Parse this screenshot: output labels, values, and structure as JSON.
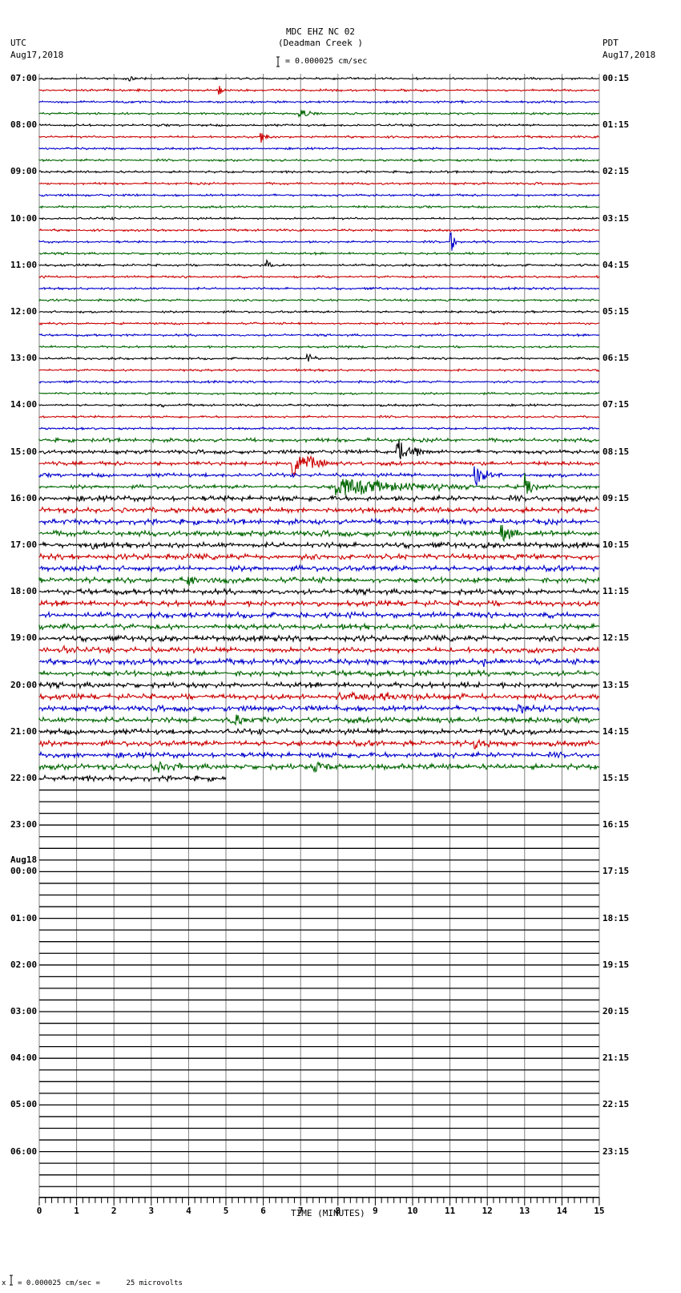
{
  "header": {
    "station": "MDC EHZ NC 02",
    "location": "(Deadman Creek )",
    "scale": "= 0.000025 cm/sec",
    "left_tz": "UTC",
    "left_date": "Aug17,2018",
    "right_tz": "PDT",
    "right_date": "Aug17,2018"
  },
  "footer": {
    "scale_note": "= 0.000025 cm/sec =      25 microvolts",
    "scale_prefix": "x"
  },
  "colors": {
    "black": "#000000",
    "red": "#cc0000",
    "blue": "#0000cc",
    "green": "#006600",
    "grid": "#808080"
  },
  "chart_data": {
    "type": "line",
    "title": "MDC EHZ NC 02 (Deadman Creek )",
    "xlabel": "TIME (MINUTES)",
    "ylabel": "",
    "xlim": [
      0,
      15
    ],
    "x_ticks": [
      0,
      1,
      2,
      3,
      4,
      5,
      6,
      7,
      8,
      9,
      10,
      11,
      12,
      13,
      14,
      15
    ],
    "rows_total": 96,
    "rows_with_data": 61,
    "last_row_end_minute": 5.0,
    "row_minutes": 15,
    "color_cycle": [
      "black",
      "red",
      "blue",
      "green"
    ],
    "left_labels": [
      {
        "row": 0,
        "text": "07:00"
      },
      {
        "row": 4,
        "text": "08:00"
      },
      {
        "row": 8,
        "text": "09:00"
      },
      {
        "row": 12,
        "text": "10:00"
      },
      {
        "row": 16,
        "text": "11:00"
      },
      {
        "row": 20,
        "text": "12:00"
      },
      {
        "row": 24,
        "text": "13:00"
      },
      {
        "row": 28,
        "text": "14:00"
      },
      {
        "row": 32,
        "text": "15:00"
      },
      {
        "row": 36,
        "text": "16:00"
      },
      {
        "row": 40,
        "text": "17:00"
      },
      {
        "row": 44,
        "text": "18:00"
      },
      {
        "row": 48,
        "text": "19:00"
      },
      {
        "row": 52,
        "text": "20:00"
      },
      {
        "row": 56,
        "text": "21:00"
      },
      {
        "row": 60,
        "text": "22:00"
      },
      {
        "row": 64,
        "text": "23:00"
      },
      {
        "row": 68,
        "text": "00:00",
        "date": "Aug18"
      },
      {
        "row": 72,
        "text": "01:00"
      },
      {
        "row": 76,
        "text": "02:00"
      },
      {
        "row": 80,
        "text": "03:00"
      },
      {
        "row": 84,
        "text": "04:00"
      },
      {
        "row": 88,
        "text": "05:00"
      },
      {
        "row": 92,
        "text": "06:00"
      }
    ],
    "right_labels": [
      {
        "row": 0,
        "text": "00:15"
      },
      {
        "row": 4,
        "text": "01:15"
      },
      {
        "row": 8,
        "text": "02:15"
      },
      {
        "row": 12,
        "text": "03:15"
      },
      {
        "row": 16,
        "text": "04:15"
      },
      {
        "row": 20,
        "text": "05:15"
      },
      {
        "row": 24,
        "text": "06:15"
      },
      {
        "row": 28,
        "text": "07:15"
      },
      {
        "row": 32,
        "text": "08:15"
      },
      {
        "row": 36,
        "text": "09:15"
      },
      {
        "row": 40,
        "text": "10:15"
      },
      {
        "row": 44,
        "text": "11:15"
      },
      {
        "row": 48,
        "text": "12:15"
      },
      {
        "row": 52,
        "text": "13:15"
      },
      {
        "row": 56,
        "text": "14:15"
      },
      {
        "row": 60,
        "text": "15:15"
      },
      {
        "row": 64,
        "text": "16:15"
      },
      {
        "row": 68,
        "text": "17:15"
      },
      {
        "row": 72,
        "text": "18:15"
      },
      {
        "row": 76,
        "text": "19:15"
      },
      {
        "row": 80,
        "text": "20:15"
      },
      {
        "row": 84,
        "text": "21:15"
      },
      {
        "row": 88,
        "text": "22:15"
      },
      {
        "row": 92,
        "text": "23:15"
      }
    ],
    "noise_by_row_range": [
      {
        "from": 0,
        "to": 30,
        "level": 0.8
      },
      {
        "from": 31,
        "to": 35,
        "level": 1.4
      },
      {
        "from": 36,
        "to": 60,
        "level": 2.0
      }
    ],
    "events": [
      {
        "row": 0,
        "minute": 2.45,
        "amp": 4,
        "dur": 0.1
      },
      {
        "row": 1,
        "minute": 4.85,
        "amp": 6,
        "dur": 0.3
      },
      {
        "row": 3,
        "minute": 7.0,
        "amp": 5,
        "dur": 0.8
      },
      {
        "row": 5,
        "minute": 5.95,
        "amp": 10,
        "dur": 0.2
      },
      {
        "row": 14,
        "minute": 11.05,
        "amp": 14,
        "dur": 0.15
      },
      {
        "row": 16,
        "minute": 6.1,
        "amp": 7,
        "dur": 0.15
      },
      {
        "row": 24,
        "minute": 7.2,
        "amp": 7,
        "dur": 0.3
      },
      {
        "row": 28,
        "minute": 3.3,
        "amp": 3,
        "dur": 0.1
      },
      {
        "row": 32,
        "minute": 9.6,
        "amp": 16,
        "dur": 1.0
      },
      {
        "row": 33,
        "minute": 6.8,
        "amp": 16,
        "dur": 1.2
      },
      {
        "row": 34,
        "minute": 11.7,
        "amp": 12,
        "dur": 0.6
      },
      {
        "row": 35,
        "minute": 7.95,
        "amp": 12,
        "dur": 4.0
      },
      {
        "row": 35,
        "minute": 13.05,
        "amp": 16,
        "dur": 0.3
      },
      {
        "row": 38,
        "minute": 0.75,
        "amp": 8,
        "dur": 0.2
      },
      {
        "row": 39,
        "minute": 12.4,
        "amp": 10,
        "dur": 0.9
      },
      {
        "row": 40,
        "minute": 1.45,
        "amp": 9,
        "dur": 0.1
      },
      {
        "row": 43,
        "minute": 4.0,
        "amp": 5,
        "dur": 1.5
      },
      {
        "row": 49,
        "minute": 0.7,
        "amp": 5,
        "dur": 0.4
      },
      {
        "row": 50,
        "minute": 11.9,
        "amp": 7,
        "dur": 0.2
      },
      {
        "row": 53,
        "minute": 8.0,
        "amp": 5,
        "dur": 4.0
      },
      {
        "row": 54,
        "minute": 12.8,
        "amp": 5,
        "dur": 0.8
      },
      {
        "row": 55,
        "minute": 5.1,
        "amp": 8,
        "dur": 1.0
      },
      {
        "row": 56,
        "minute": 12.5,
        "amp": 5,
        "dur": 0.5
      },
      {
        "row": 57,
        "minute": 11.7,
        "amp": 7,
        "dur": 0.6
      },
      {
        "row": 59,
        "minute": 3.1,
        "amp": 7,
        "dur": 0.8
      },
      {
        "row": 59,
        "minute": 7.4,
        "amp": 9,
        "dur": 0.7
      }
    ]
  }
}
